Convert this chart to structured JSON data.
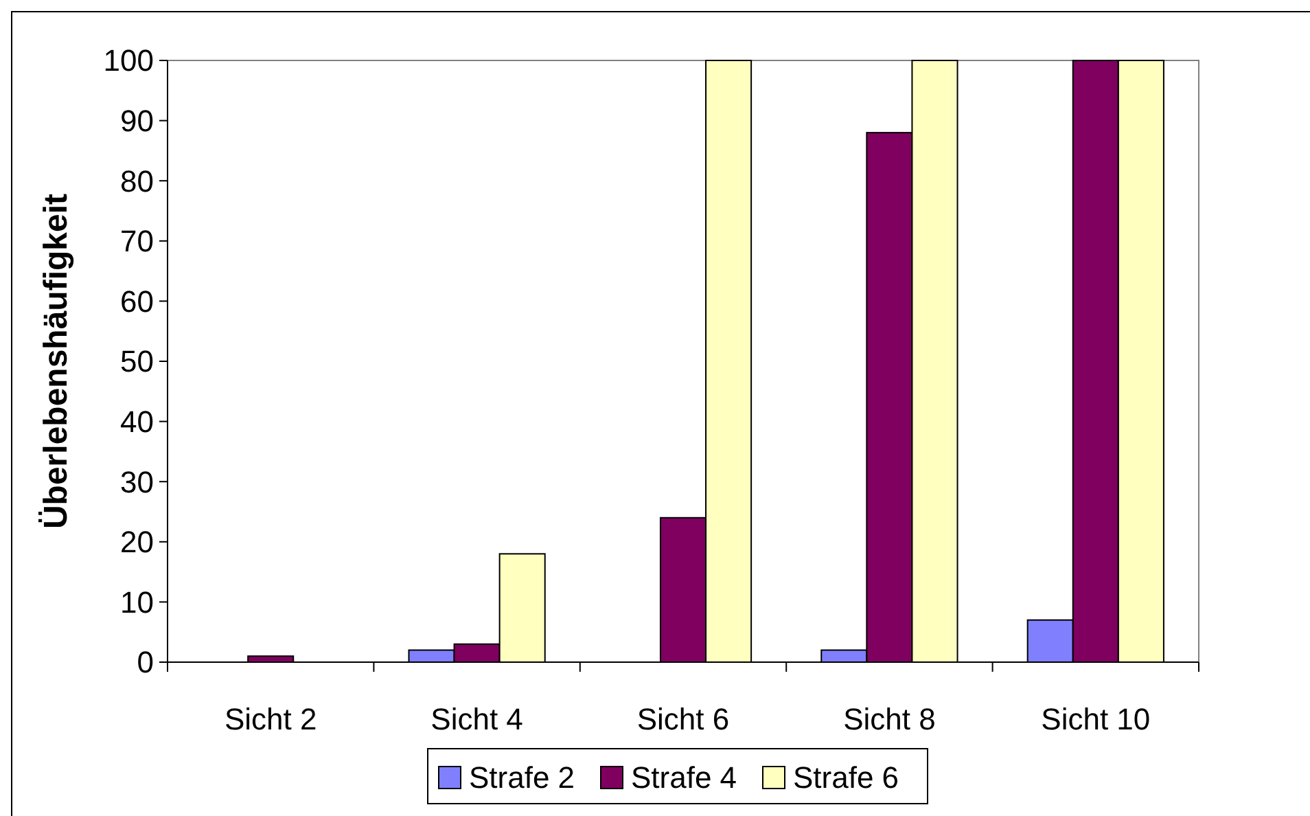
{
  "chart_data": {
    "type": "bar",
    "ylabel": "Überlebenshäufigkeit",
    "categories": [
      "Sicht 2",
      "Sicht 4",
      "Sicht 6",
      "Sicht 8",
      "Sicht 10"
    ],
    "series": [
      {
        "name": "Strafe 2",
        "color": "#8080ff",
        "values": [
          0,
          2,
          0,
          2,
          7
        ]
      },
      {
        "name": "Strafe 4",
        "color": "#800060",
        "values": [
          1,
          3,
          24,
          88,
          100
        ]
      },
      {
        "name": "Strafe 6",
        "color": "#ffffc0",
        "values": [
          0,
          18,
          100,
          100,
          100
        ]
      }
    ],
    "ylim": [
      0,
      100
    ],
    "yticks": [
      0,
      10,
      20,
      30,
      40,
      50,
      60,
      70,
      80,
      90,
      100
    ],
    "grid": false,
    "legend": "bottom"
  }
}
